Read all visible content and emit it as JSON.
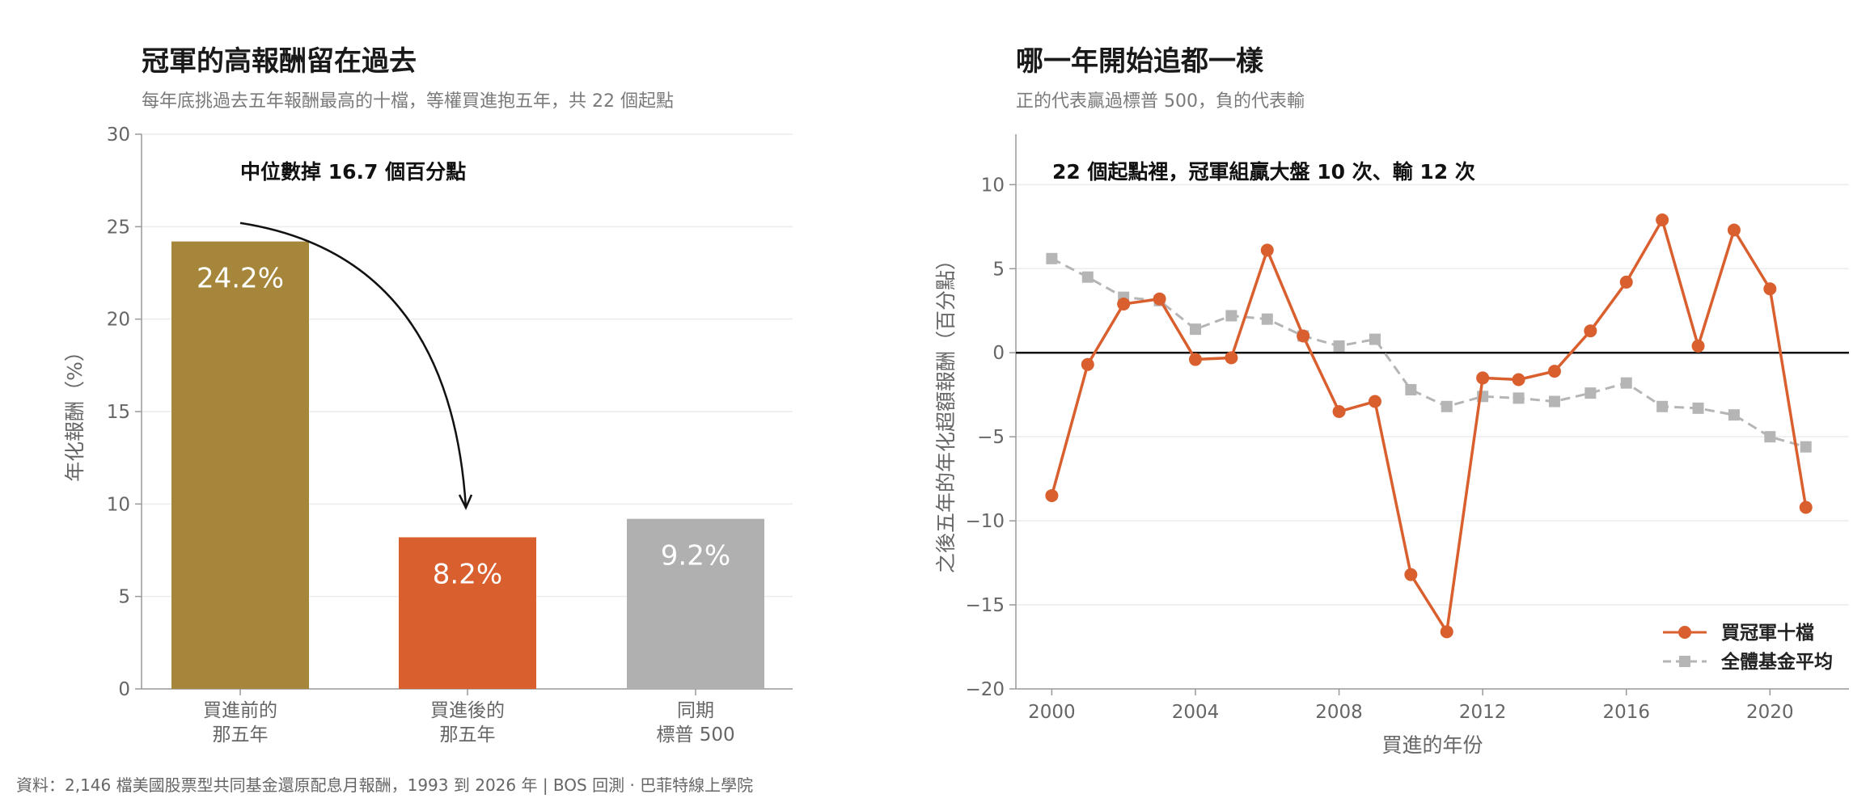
{
  "footer": "資料：2,146 檔美國股票型共同基金還原配息月報酬，1993 到 2026 年 | BOS 回測 · 巴菲特線上學院",
  "chart_data": [
    {
      "type": "bar",
      "title": "冠軍的高報酬留在過去",
      "subtitle": "每年底挑過去五年報酬最高的十檔，等權買進抱五年，共 22 個起點",
      "ylabel": "年化報酬（%）",
      "ylim": [
        0,
        30
      ],
      "yticks": [
        0,
        5,
        10,
        15,
        20,
        25,
        30
      ],
      "grid": true,
      "categories": [
        [
          "買進前的",
          "那五年"
        ],
        [
          "買進後的",
          "那五年"
        ],
        [
          "同期",
          "標普 500"
        ]
      ],
      "values": [
        24.2,
        8.2,
        9.2
      ],
      "value_labels": [
        "24.2%",
        "8.2%",
        "9.2%"
      ],
      "colors": [
        "#a6863a",
        "#d95f2e",
        "#b0b0b0"
      ],
      "annotation": "中位數掉 16.7 個百分點"
    },
    {
      "type": "line",
      "title": "哪一年開始追都一樣",
      "subtitle": "正的代表贏過標普 500，負的代表輸",
      "xlabel": "買進的年份",
      "ylabel": "之後五年的年化超額報酬（百分點）",
      "xlim": [
        1999,
        2022.2
      ],
      "ylim": [
        -20,
        13
      ],
      "xticks": [
        2000,
        2004,
        2008,
        2012,
        2016,
        2020
      ],
      "yticks": [
        -20,
        -15,
        -10,
        -5,
        0,
        5,
        10
      ],
      "ytick_labels": [
        "−20",
        "−15",
        "−10",
        "−5",
        "0",
        "5",
        "10"
      ],
      "grid": true,
      "legend_position": "bottom-right",
      "annotation": "22 個起點裡，冠軍組贏大盤 10 次、輸 12 次",
      "x": [
        2000,
        2001,
        2002,
        2003,
        2004,
        2005,
        2006,
        2007,
        2008,
        2009,
        2010,
        2011,
        2012,
        2013,
        2014,
        2015,
        2016,
        2017,
        2018,
        2019,
        2020,
        2021
      ],
      "series": [
        {
          "name": "買冠軍十檔",
          "color": "#d95f2e",
          "marker": "circle",
          "values": [
            -8.5,
            -0.7,
            2.9,
            3.2,
            -0.4,
            -0.3,
            6.1,
            1.0,
            -3.5,
            -2.9,
            -13.2,
            -16.6,
            -1.5,
            -1.6,
            -1.1,
            1.3,
            4.2,
            7.9,
            0.4,
            7.3,
            3.8,
            -9.2
          ]
        },
        {
          "name": "全體基金平均",
          "color": "#b5b5b5",
          "marker": "square",
          "dashed": true,
          "values": [
            5.6,
            4.5,
            3.3,
            3.1,
            1.4,
            2.2,
            2.0,
            1.0,
            0.4,
            0.8,
            -2.2,
            -3.2,
            -2.6,
            -2.7,
            -2.9,
            -2.4,
            -1.8,
            -3.2,
            -3.3,
            -3.7,
            -5.0,
            -5.6
          ]
        }
      ]
    }
  ]
}
